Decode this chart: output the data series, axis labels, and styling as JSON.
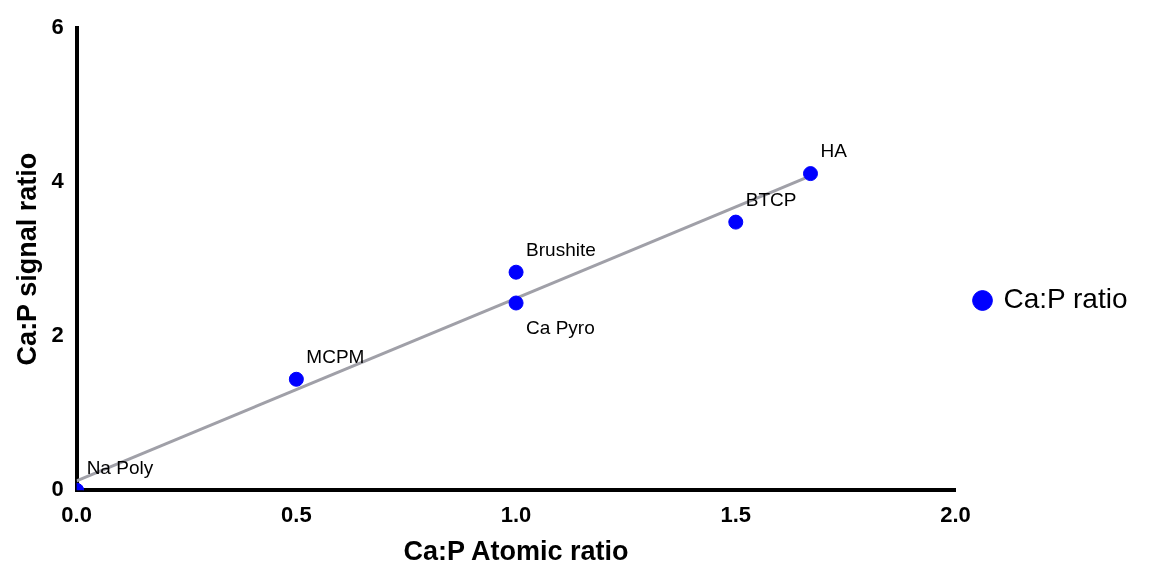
{
  "chart_data": {
    "type": "scatter",
    "xlabel": "Ca:P Atomic ratio",
    "ylabel": "Ca:P signal ratio",
    "series": [
      {
        "name": "Ca:P ratio",
        "type": "scatter",
        "marker": "circle",
        "color": "#0000ff",
        "x": [
          0,
          0.5,
          1,
          1,
          1.5,
          1.67
        ],
        "values": [
          0,
          1.44,
          2.83,
          2.43,
          3.48,
          4.11
        ]
      },
      {
        "type": "line",
        "marker": "none",
        "color": "#a0a0a8",
        "x": [
          0,
          1.67
        ],
        "values": [
          0.12,
          4.08
        ]
      }
    ],
    "xlim": [
      0,
      2
    ],
    "xticks": [
      {
        "value": 0,
        "label": "0.0"
      },
      {
        "value": 0.5,
        "label": "0.5"
      },
      {
        "value": 1,
        "label": "1.0"
      },
      {
        "value": 1.5,
        "label": "1.5"
      },
      {
        "value": 2,
        "label": "2.0"
      }
    ],
    "ylim": [
      0,
      6
    ],
    "yticks": [
      0,
      2,
      4,
      6
    ],
    "grid": false,
    "legend": "right",
    "annotations": [
      {
        "text": "Na Poly",
        "x": 0,
        "y": 0
      },
      {
        "text": "MCPM",
        "x": 0.5,
        "y": 1.44
      },
      {
        "text": "Brushite",
        "x": 1,
        "y": 2.83
      },
      {
        "text": "Ca Pyro",
        "x": 1,
        "y": 2.43
      },
      {
        "text": "BTCP",
        "x": 1.5,
        "y": 3.48
      },
      {
        "text": "HA",
        "x": 1.67,
        "y": 4.11
      }
    ]
  }
}
